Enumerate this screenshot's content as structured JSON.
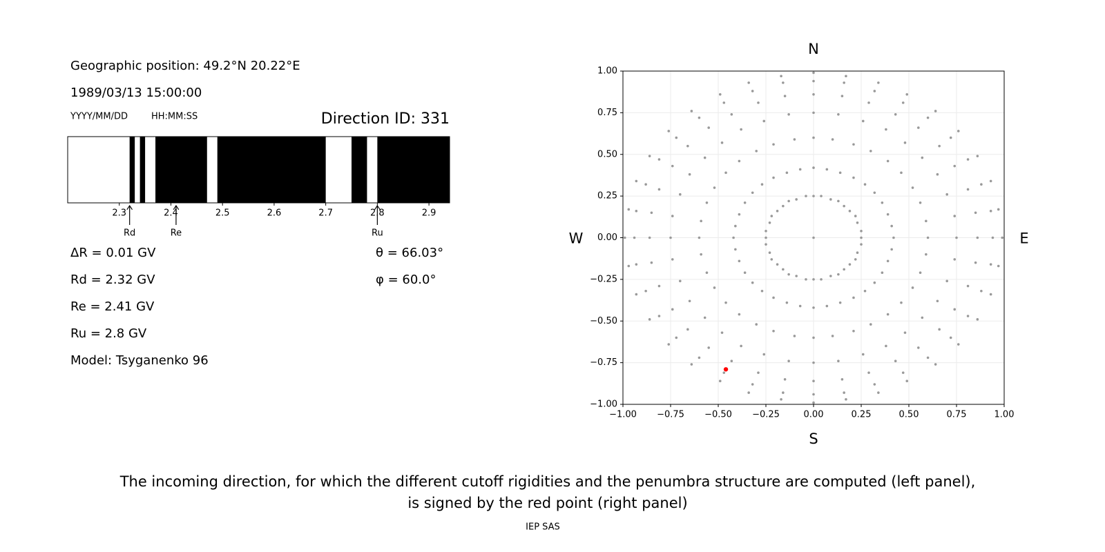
{
  "info": {
    "position": "Geographic position: 49.2°N 20.22°E",
    "datetime": "1989/03/13 15:00:00",
    "date_format": "YYYY/MM/DD",
    "time_format": "HH:MM:SS",
    "direction_id": "Direction ID: 331",
    "parameters": [
      "ΔR = 0.01 GV",
      "Rd = 2.32 GV",
      "Re = 2.41 GV",
      "Ru = 2.8 GV",
      "Model: Tsyganenko 96"
    ],
    "angles": [
      "θ = 66.03°",
      "φ = 60.0°"
    ]
  },
  "chart_data": [
    {
      "type": "penumbra",
      "xlim": [
        2.2,
        2.94
      ],
      "xticks": [
        2.3,
        2.4,
        2.5,
        2.6,
        2.7,
        2.8,
        2.9
      ],
      "color": "#000000",
      "intervals": [
        [
          2.32,
          2.33
        ],
        [
          2.34,
          2.35
        ],
        [
          2.37,
          2.47
        ],
        [
          2.49,
          2.7
        ],
        [
          2.75,
          2.78
        ],
        [
          2.8,
          2.94
        ]
      ],
      "markers": [
        {
          "label": "Rd",
          "value": 2.32
        },
        {
          "label": "Re",
          "value": 2.41
        },
        {
          "label": "Ru",
          "value": 2.8
        }
      ]
    },
    {
      "type": "scatter",
      "xlim": [
        -1,
        1
      ],
      "ylim": [
        -1,
        1
      ],
      "grid": true,
      "xticks": [
        {
          "value": -1,
          "label": "−1.00"
        },
        {
          "value": -0.75,
          "label": "−0.75"
        },
        {
          "value": -0.5,
          "label": "−0.50"
        },
        {
          "value": -0.25,
          "label": "−0.25"
        },
        {
          "value": 0,
          "label": "0.00"
        },
        0.25,
        {
          "value": 0.5,
          "label": "0.50"
        },
        0.75,
        {
          "value": 1,
          "label": "1.00"
        }
      ],
      "yticks": [
        {
          "value": -1,
          "label": "−1.00"
        },
        {
          "value": -0.75,
          "label": "−0.75"
        },
        {
          "value": -0.5,
          "label": "−0.50"
        },
        {
          "value": -0.25,
          "label": "−0.25"
        },
        {
          "value": 0,
          "label": "0.00"
        },
        0.25,
        {
          "value": 0.5,
          "label": "0.50"
        },
        0.75,
        {
          "value": 1,
          "label": "1.00"
        }
      ],
      "directions": {
        "top": "N",
        "bottom": "S",
        "left": "W",
        "right": "E"
      },
      "series": [
        {
          "color": "#999999",
          "x": [
            0,
            0,
            0.04,
            0.09,
            0.13,
            0.16,
            0.19,
            0.22,
            0.23,
            0.25,
            0.25,
            0.25,
            0.23,
            0.22,
            0.19,
            0.16,
            0.13,
            0.09,
            0.04,
            0,
            -0.04,
            -0.09,
            -0.13,
            -0.16,
            -0.19,
            -0.22,
            -0.23,
            -0.25,
            -0.25,
            -0.25,
            -0.23,
            -0.22,
            -0.19,
            -0.16,
            -0.13,
            -0.09,
            -0.04,
            0,
            0.07,
            0.14,
            0.21,
            0.27,
            0.32,
            0.36,
            0.39,
            0.41,
            0.42,
            0.41,
            0.39,
            0.36,
            0.32,
            0.27,
            0.21,
            0.14,
            0.07,
            0,
            -0.07,
            -0.14,
            -0.21,
            -0.27,
            -0.32,
            -0.36,
            -0.39,
            -0.41,
            -0.42,
            -0.41,
            -0.39,
            -0.36,
            -0.32,
            -0.27,
            -0.21,
            -0.14,
            -0.07,
            0,
            0.1,
            0.21,
            0.3,
            0.39,
            0.46,
            0.52,
            0.56,
            0.59,
            0.6,
            0.59,
            0.56,
            0.52,
            0.46,
            0.39,
            0.3,
            0.21,
            0.1,
            0,
            -0.1,
            -0.21,
            -0.3,
            -0.39,
            -0.46,
            -0.52,
            -0.56,
            -0.59,
            -0.6,
            -0.59,
            -0.56,
            -0.52,
            -0.46,
            -0.39,
            -0.3,
            -0.21,
            -0.1,
            0,
            0.13,
            0.26,
            0.38,
            0.48,
            0.57,
            0.65,
            0.7,
            0.74,
            0.75,
            0.74,
            0.7,
            0.65,
            0.57,
            0.48,
            0.38,
            0.26,
            0.13,
            0,
            -0.13,
            -0.26,
            -0.38,
            -0.48,
            -0.57,
            -0.65,
            -0.7,
            -0.74,
            -0.75,
            -0.74,
            -0.7,
            -0.65,
            -0.57,
            -0.48,
            -0.38,
            -0.26,
            -0.13,
            0,
            0.15,
            0.29,
            0.43,
            0.55,
            0.66,
            0.74,
            0.81,
            0.85,
            0.86,
            0.85,
            0.81,
            0.74,
            0.66,
            0.55,
            0.43,
            0.29,
            0.15,
            0,
            -0.15,
            -0.29,
            -0.43,
            -0.55,
            -0.66,
            -0.74,
            -0.81,
            -0.85,
            -0.86,
            -0.85,
            -0.81,
            -0.74,
            -0.66,
            -0.55,
            -0.43,
            -0.29,
            -0.15,
            0,
            0.16,
            0.32,
            0.47,
            0.6,
            0.72,
            0.81,
            0.88,
            0.93,
            0.94,
            0.93,
            0.88,
            0.81,
            0.72,
            0.6,
            0.47,
            0.32,
            0.16,
            0,
            -0.16,
            -0.32,
            -0.47,
            -0.6,
            -0.72,
            -0.81,
            -0.88,
            -0.93,
            -0.94,
            -0.93,
            -0.88,
            -0.81,
            -0.72,
            -0.6,
            -0.47,
            -0.32,
            -0.16,
            0,
            0.17,
            0.34,
            0.49,
            0.64,
            0.76,
            0.86,
            0.93,
            0.97,
            0.99,
            0.97,
            0.93,
            0.86,
            0.76,
            0.64,
            0.49,
            0.34,
            0.17,
            0,
            -0.17,
            -0.34,
            -0.49,
            -0.64,
            -0.76,
            -0.86,
            -0.93,
            -0.97,
            -0.99,
            -0.97,
            -0.93,
            -0.86,
            -0.76,
            -0.64,
            -0.49,
            -0.34,
            -0.17
          ],
          "y": [
            0,
            0.25,
            0.25,
            0.23,
            0.22,
            0.19,
            0.16,
            0.13,
            0.09,
            0.04,
            0,
            -0.04,
            -0.09,
            -0.13,
            -0.16,
            -0.19,
            -0.22,
            -0.23,
            -0.25,
            -0.25,
            -0.25,
            -0.23,
            -0.22,
            -0.19,
            -0.16,
            -0.13,
            -0.09,
            -0.04,
            0,
            0.04,
            0.09,
            0.13,
            0.16,
            0.19,
            0.22,
            0.23,
            0.25,
            0.42,
            0.41,
            0.39,
            0.36,
            0.32,
            0.27,
            0.21,
            0.14,
            0.07,
            0,
            -0.07,
            -0.14,
            -0.21,
            -0.27,
            -0.32,
            -0.36,
            -0.39,
            -0.41,
            -0.42,
            -0.41,
            -0.39,
            -0.36,
            -0.32,
            -0.27,
            -0.21,
            -0.14,
            -0.07,
            0,
            0.07,
            0.14,
            0.21,
            0.27,
            0.32,
            0.36,
            0.39,
            0.41,
            0.6,
            0.59,
            0.56,
            0.52,
            0.46,
            0.39,
            0.3,
            0.21,
            0.1,
            0,
            -0.1,
            -0.21,
            -0.3,
            -0.39,
            -0.46,
            -0.52,
            -0.56,
            -0.59,
            -0.6,
            -0.59,
            -0.56,
            -0.52,
            -0.46,
            -0.39,
            -0.3,
            -0.21,
            -0.1,
            0,
            0.1,
            0.21,
            0.3,
            0.39,
            0.46,
            0.52,
            0.56,
            0.59,
            0.75,
            0.74,
            0.7,
            0.65,
            0.57,
            0.48,
            0.38,
            0.26,
            0.13,
            0,
            -0.13,
            -0.26,
            -0.38,
            -0.48,
            -0.57,
            -0.65,
            -0.7,
            -0.74,
            -0.75,
            -0.74,
            -0.7,
            -0.65,
            -0.57,
            -0.48,
            -0.38,
            -0.26,
            -0.13,
            0,
            0.13,
            0.26,
            0.38,
            0.48,
            0.57,
            0.65,
            0.7,
            0.74,
            0.86,
            0.85,
            0.81,
            0.74,
            0.66,
            0.55,
            0.43,
            0.29,
            0.15,
            0,
            -0.15,
            -0.29,
            -0.43,
            -0.55,
            -0.66,
            -0.74,
            -0.81,
            -0.85,
            -0.86,
            -0.85,
            -0.81,
            -0.74,
            -0.66,
            -0.55,
            -0.43,
            -0.29,
            -0.15,
            0,
            0.15,
            0.29,
            0.43,
            0.55,
            0.66,
            0.74,
            0.81,
            0.85,
            0.94,
            0.93,
            0.88,
            0.81,
            0.72,
            0.6,
            0.47,
            0.32,
            0.16,
            0,
            -0.16,
            -0.32,
            -0.47,
            -0.6,
            -0.72,
            -0.81,
            -0.88,
            -0.93,
            -0.94,
            -0.93,
            -0.88,
            -0.81,
            -0.72,
            -0.6,
            -0.47,
            -0.32,
            -0.16,
            0,
            0.16,
            0.32,
            0.47,
            0.6,
            0.72,
            0.81,
            0.88,
            0.93,
            0.99,
            0.97,
            0.93,
            0.86,
            0.76,
            0.64,
            0.49,
            0.34,
            0.17,
            0,
            -0.17,
            -0.34,
            -0.49,
            -0.64,
            -0.76,
            -0.86,
            -0.93,
            -0.97,
            -0.99,
            -0.97,
            -0.93,
            -0.86,
            -0.76,
            -0.64,
            -0.49,
            -0.34,
            -0.17,
            0,
            0.17,
            0.34,
            0.49,
            0.64,
            0.76,
            0.86,
            0.93,
            0.97
          ]
        },
        {
          "color": "#ff0000",
          "x": [
            -0.46
          ],
          "y": [
            -0.79
          ]
        }
      ]
    }
  ],
  "caption": [
    "The incoming direction, for which the different cutoff rigidities and the penumbra structure are computed (left panel),",
    "is signed by the red point (right panel)"
  ],
  "footer": "IEP SAS"
}
